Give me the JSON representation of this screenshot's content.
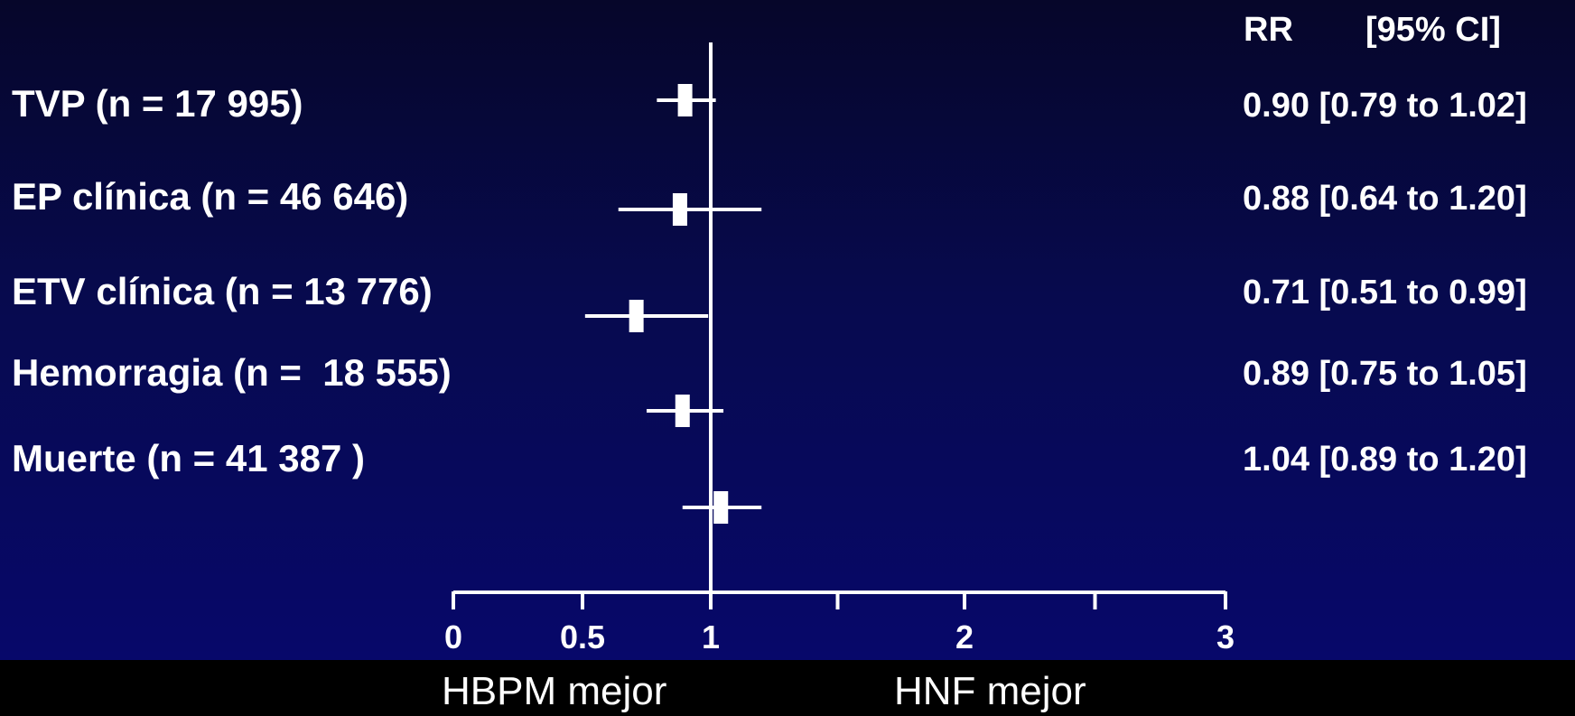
{
  "chart_data": {
    "type": "forest",
    "header": {
      "rr": "RR",
      "ci": "[95% CI]"
    },
    "rows": [
      {
        "label": "TVP (n = 17 995)",
        "rr": 0.9,
        "lo": 0.79,
        "hi": 1.02,
        "text": "0.90 [0.79 to 1.02]"
      },
      {
        "label": "EP clínica (n = 46 646)",
        "rr": 0.88,
        "lo": 0.64,
        "hi": 1.2,
        "text": "0.88 [0.64 to 1.20]"
      },
      {
        "label": "ETV clínica (n = 13 776)",
        "rr": 0.71,
        "lo": 0.51,
        "hi": 0.99,
        "text": "0.71 [0.51 to 0.99]"
      },
      {
        "label": "Hemorragia (n =  18 555)",
        "rr": 0.89,
        "lo": 0.75,
        "hi": 1.05,
        "text": "0.89 [0.75 to 1.05]"
      },
      {
        "label": "Muerte (n = 41 387 )",
        "rr": 1.04,
        "lo": 0.89,
        "hi": 1.2,
        "text": "1.04 [0.89 to 1.20]"
      }
    ],
    "x_ticks": [
      {
        "value": 0,
        "label": "0"
      },
      {
        "value": 0.5,
        "label": "0.5"
      },
      {
        "value": 1,
        "label": "1"
      },
      {
        "value": 2,
        "label": "2"
      },
      {
        "value": 3,
        "label": "3"
      }
    ],
    "reference_line": 1,
    "xlabel_left": "HBPM mejor",
    "xlabel_right": "HNF mejor",
    "colors": {
      "background_top": "#06062a",
      "background_bottom": "#07086a",
      "marks": "#ffffff",
      "footer": "#000000"
    }
  }
}
